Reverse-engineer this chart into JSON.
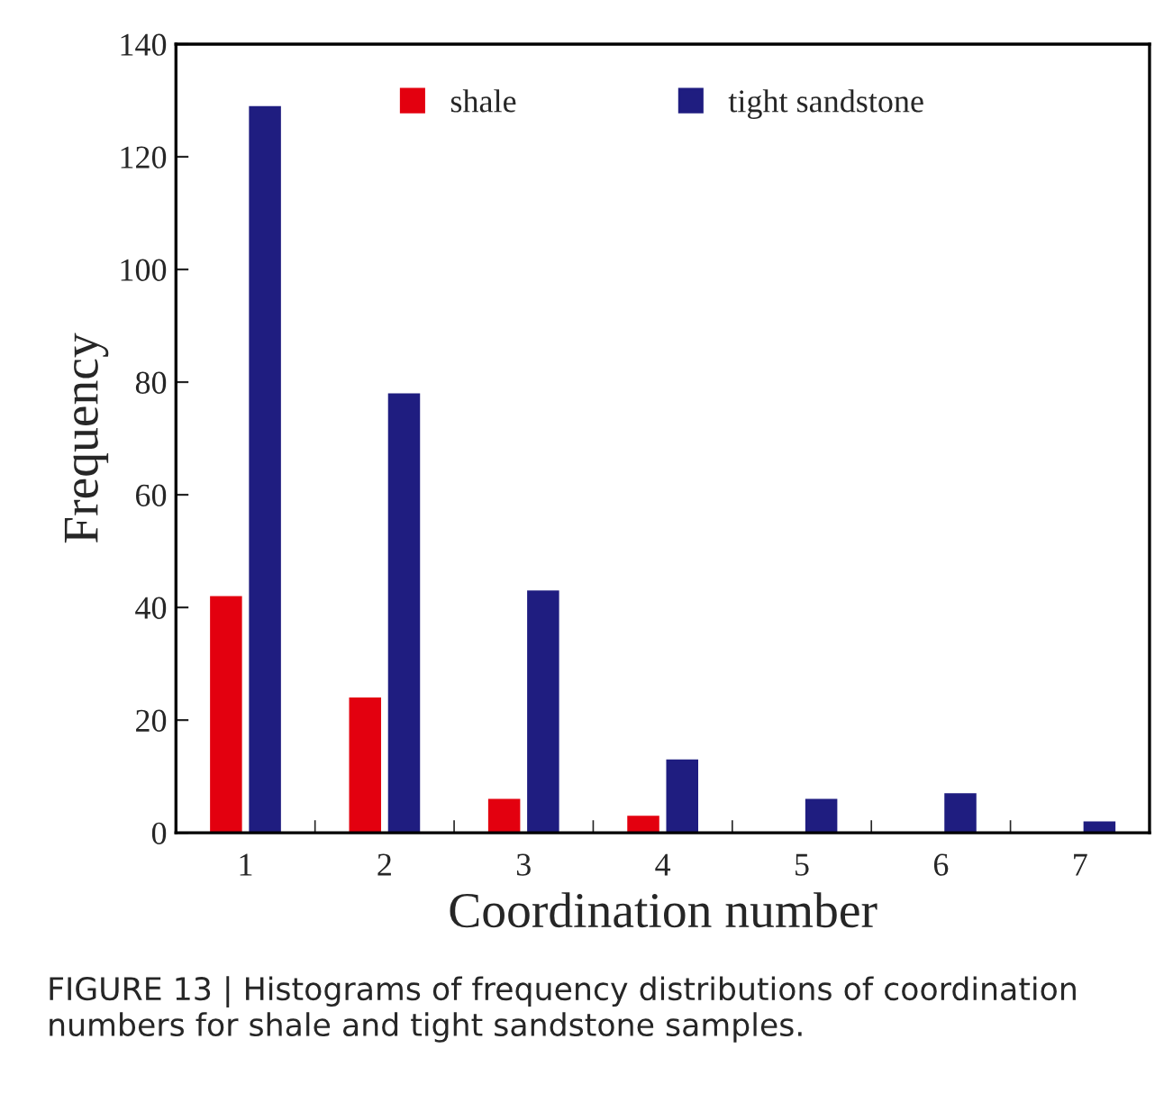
{
  "chart_data": {
    "type": "bar",
    "xlabel": "Coordination number",
    "ylabel": "Frequency",
    "categories": [
      "1",
      "2",
      "3",
      "4",
      "5",
      "6",
      "7"
    ],
    "series": [
      {
        "name": "shale",
        "color": "#e3000f",
        "values": [
          42,
          24,
          6,
          3,
          0,
          0,
          0
        ]
      },
      {
        "name": "tight sandstone",
        "color": "#1f1d80",
        "values": [
          129,
          78,
          43,
          13,
          6,
          7,
          2
        ]
      }
    ],
    "ylim": [
      0,
      140
    ],
    "yticks": [
      0,
      20,
      40,
      60,
      80,
      100,
      120,
      140
    ],
    "grid": false,
    "legend": "top",
    "annotations": [
      "FIGURE 13 | Histograms of frequency distributions of coordination numbers for shale and tight sandstone samples."
    ]
  }
}
